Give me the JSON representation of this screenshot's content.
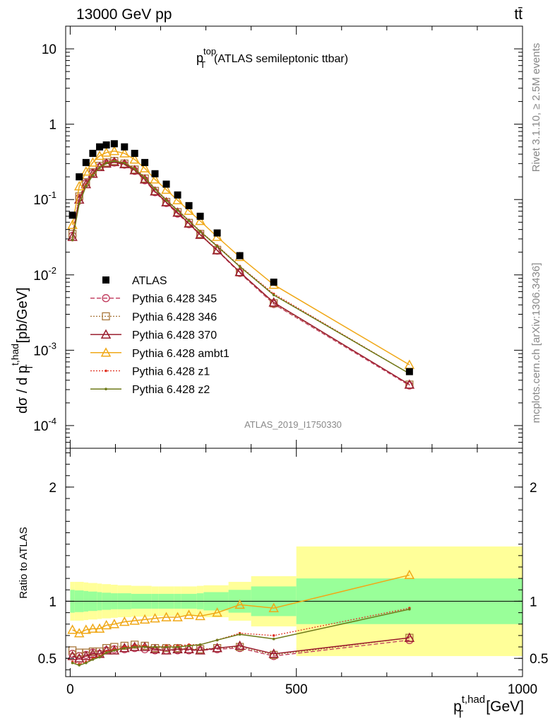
{
  "header": {
    "energy": "13000 GeV pp",
    "process": "tt̄"
  },
  "side": {
    "rivet": "Rivet 3.1.10, ≥ 2.5M events",
    "mcplots": "mcplots.cern.ch [arXiv:1306.3436]"
  },
  "chart_data": [
    {
      "type": "scatter",
      "title_main": "p",
      "title_sup": "top",
      "title_sub": "T",
      "title_rest": "(ATLAS semileptonic ttbar)",
      "ylabel_main": "dσ / d p",
      "ylabel_sup": "t,had",
      "ylabel_sub": "T",
      "ylabel_unit": "[pb/GeV]",
      "yscale": "log",
      "ylim": [
        5e-05,
        20
      ],
      "xlim": [
        -10,
        1000
      ],
      "yticks": [
        {
          "v": 0.0001,
          "b": "10",
          "e": "-4"
        },
        {
          "v": 0.001,
          "b": "10",
          "e": "-3"
        },
        {
          "v": 0.01,
          "b": "10",
          "e": "-2"
        },
        {
          "v": 0.1,
          "b": "10",
          "e": "-1"
        },
        {
          "v": 1,
          "b": "1",
          "e": ""
        },
        {
          "v": 10,
          "b": "10",
          "e": ""
        }
      ],
      "watermark": "ATLAS_2019_I1750330",
      "legend_position": "middle-left",
      "x": [
        5,
        20,
        35,
        50,
        65,
        80,
        97.5,
        120,
        142.5,
        165,
        187.5,
        212.5,
        237.5,
        262.5,
        287.5,
        325,
        375,
        450,
        750
      ],
      "data": [
        0.062,
        0.2,
        0.31,
        0.41,
        0.5,
        0.53,
        0.55,
        0.5,
        0.41,
        0.31,
        0.22,
        0.16,
        0.115,
        0.083,
        0.06,
        0.036,
        0.018,
        0.008,
        0.00052
      ],
      "series": [
        {
          "name": "Pythia 6.428 345",
          "color": "#c03a5c",
          "marker": "circle-open",
          "dash": "6,3",
          "width": 1.3,
          "values": [
            0.033,
            0.105,
            0.165,
            0.225,
            0.27,
            0.3,
            0.31,
            0.29,
            0.24,
            0.18,
            0.125,
            0.09,
            0.065,
            0.047,
            0.034,
            0.021,
            0.0106,
            0.0041,
            0.00034
          ]
        },
        {
          "name": "Pythia 6.428 346",
          "color": "#a8763b",
          "marker": "square-open",
          "dash": "2,2",
          "width": 1.3,
          "values": [
            0.035,
            0.11,
            0.17,
            0.23,
            0.28,
            0.31,
            0.325,
            0.3,
            0.25,
            0.19,
            0.13,
            0.093,
            0.068,
            0.049,
            0.035,
            0.0215,
            0.0108,
            0.0042,
            0.00035
          ]
        },
        {
          "name": "Pythia 6.428 370",
          "color": "#9a1d2e",
          "marker": "triangle-open",
          "dash": "",
          "width": 1.5,
          "values": [
            0.032,
            0.1,
            0.16,
            0.22,
            0.27,
            0.3,
            0.315,
            0.295,
            0.245,
            0.185,
            0.128,
            0.092,
            0.067,
            0.048,
            0.034,
            0.0212,
            0.0109,
            0.0043,
            0.00035
          ]
        },
        {
          "name": "Pythia 6.428 ambt1",
          "color": "#f0a818",
          "marker": "triangle-open",
          "dash": "",
          "width": 1.5,
          "values": [
            0.046,
            0.15,
            0.235,
            0.31,
            0.38,
            0.42,
            0.44,
            0.41,
            0.34,
            0.26,
            0.185,
            0.135,
            0.098,
            0.071,
            0.052,
            0.032,
            0.0173,
            0.0074,
            0.00064
          ]
        },
        {
          "name": "Pythia 6.428 z1",
          "color": "#e03020",
          "marker": "dot",
          "dash": "2,2",
          "width": 1.3,
          "values": [
            0.029,
            0.09,
            0.155,
            0.215,
            0.27,
            0.31,
            0.33,
            0.31,
            0.26,
            0.2,
            0.14,
            0.1,
            0.073,
            0.053,
            0.038,
            0.0245,
            0.0131,
            0.0056,
            0.00049
          ]
        },
        {
          "name": "Pythia 6.428 z2",
          "color": "#6e7a18",
          "marker": "dot",
          "dash": "",
          "width": 1.5,
          "values": [
            0.029,
            0.088,
            0.15,
            0.21,
            0.265,
            0.305,
            0.325,
            0.305,
            0.255,
            0.195,
            0.138,
            0.098,
            0.072,
            0.052,
            0.0375,
            0.024,
            0.0129,
            0.0054,
            0.00049
          ]
        }
      ]
    },
    {
      "type": "line",
      "ylabel": "Ratio to ATLAS",
      "xlabel_main": "p",
      "xlabel_sup": "t,had",
      "xlabel_sub": "T",
      "xlabel_unit": "[GeV]",
      "xlim": [
        -10,
        1000
      ],
      "ylim": [
        0.34,
        2.34
      ],
      "xticks": [
        0,
        500,
        1000
      ],
      "xtick_labels": [
        "0",
        "500",
        "1000"
      ],
      "yticks": [
        0.5,
        1,
        2
      ],
      "ytick_labels": [
        "0.5",
        "1",
        "2"
      ],
      "bin_edges": [
        0,
        10,
        30,
        40,
        60,
        70,
        90,
        105,
        135,
        150,
        180,
        195,
        230,
        245,
        280,
        295,
        350,
        400,
        500,
        1000
      ],
      "band_yellow": [
        0.17,
        0.17,
        0.165,
        0.16,
        0.155,
        0.15,
        0.145,
        0.14,
        0.135,
        0.135,
        0.13,
        0.13,
        0.13,
        0.13,
        0.135,
        0.14,
        0.17,
        0.22,
        0.48
      ],
      "band_green": [
        0.1,
        0.095,
        0.09,
        0.085,
        0.08,
        0.075,
        0.07,
        0.07,
        0.065,
        0.065,
        0.065,
        0.065,
        0.065,
        0.065,
        0.07,
        0.08,
        0.1,
        0.13,
        0.2
      ],
      "x": [
        5,
        20,
        35,
        50,
        65,
        80,
        97.5,
        120,
        142.5,
        165,
        187.5,
        212.5,
        237.5,
        262.5,
        287.5,
        325,
        375,
        450,
        750
      ],
      "series": [
        {
          "name": "Pythia 6.428 345",
          "color": "#c03a5c",
          "marker": "circle-open",
          "dash": "6,3",
          "width": 1.3,
          "values": [
            0.54,
            0.52,
            0.53,
            0.55,
            0.54,
            0.57,
            0.58,
            0.58,
            0.59,
            0.58,
            0.57,
            0.57,
            0.57,
            0.57,
            0.57,
            0.58,
            0.59,
            0.52,
            0.66
          ]
        },
        {
          "name": "Pythia 6.428 346",
          "color": "#a8763b",
          "marker": "square-open",
          "dash": "2,2",
          "width": 1.3,
          "values": [
            0.57,
            0.55,
            0.55,
            0.56,
            0.56,
            0.59,
            0.6,
            0.61,
            0.62,
            0.61,
            0.59,
            0.59,
            0.59,
            0.58,
            0.58,
            0.59,
            0.6,
            0.53,
            0.68
          ]
        },
        {
          "name": "Pythia 6.428 370",
          "color": "#9a1d2e",
          "marker": "triangle-open",
          "dash": "",
          "width": 1.5,
          "values": [
            0.52,
            0.5,
            0.52,
            0.54,
            0.54,
            0.57,
            0.57,
            0.59,
            0.6,
            0.6,
            0.58,
            0.57,
            0.58,
            0.58,
            0.57,
            0.59,
            0.61,
            0.54,
            0.68
          ]
        },
        {
          "name": "Pythia 6.428 ambt1",
          "color": "#f0a818",
          "marker": "triangle-open",
          "dash": "",
          "width": 1.5,
          "values": [
            0.75,
            0.72,
            0.75,
            0.76,
            0.76,
            0.79,
            0.8,
            0.82,
            0.83,
            0.84,
            0.85,
            0.86,
            0.86,
            0.88,
            0.87,
            0.9,
            0.97,
            0.94,
            1.23
          ]
        },
        {
          "name": "Pythia 6.428 z1",
          "color": "#e03020",
          "marker": "dot",
          "dash": "2,2",
          "width": 1.3,
          "values": [
            0.47,
            0.45,
            0.47,
            0.5,
            0.52,
            0.56,
            0.58,
            0.6,
            0.61,
            0.61,
            0.6,
            0.61,
            0.61,
            0.62,
            0.62,
            0.66,
            0.72,
            0.7,
            0.94
          ]
        },
        {
          "name": "Pythia 6.428 z2",
          "color": "#6e7a18",
          "marker": "dot",
          "dash": "",
          "width": 1.5,
          "values": [
            0.46,
            0.44,
            0.46,
            0.49,
            0.51,
            0.55,
            0.57,
            0.59,
            0.6,
            0.6,
            0.6,
            0.6,
            0.6,
            0.61,
            0.62,
            0.66,
            0.71,
            0.67,
            0.93
          ]
        }
      ]
    }
  ],
  "legend": {
    "data_label": "ATLAS",
    "items": [
      "Pythia 6.428 345",
      "Pythia 6.428 346",
      "Pythia 6.428 370",
      "Pythia 6.428 ambt1",
      "Pythia 6.428 z1",
      "Pythia 6.428 z2"
    ]
  }
}
